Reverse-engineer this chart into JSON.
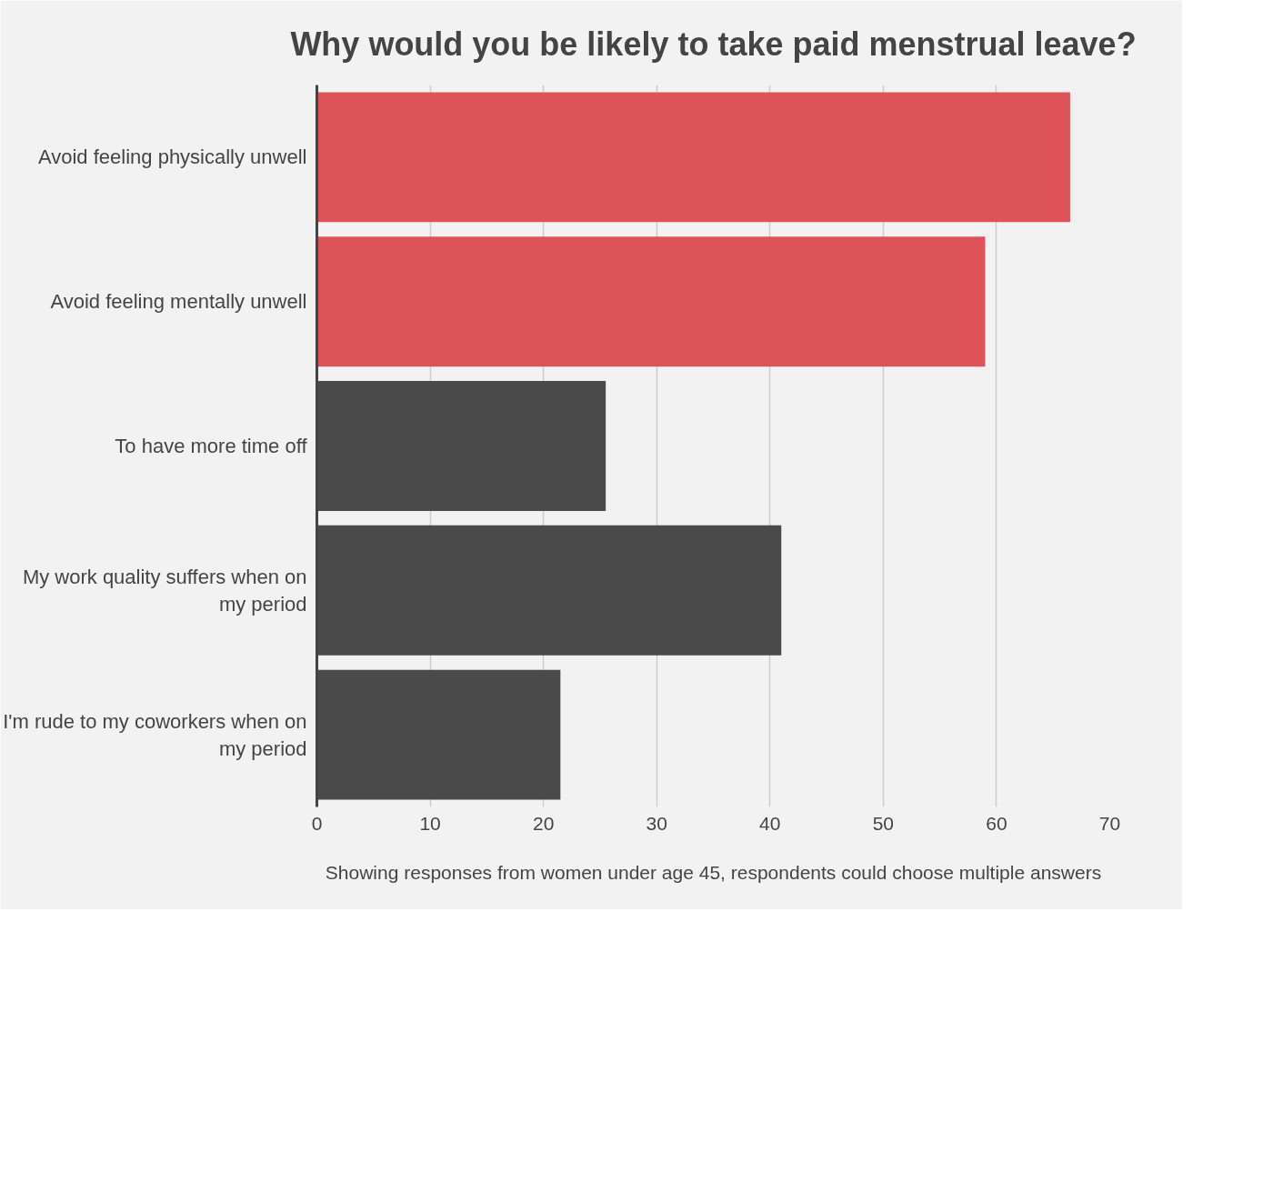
{
  "chart_data": {
    "type": "bar",
    "orientation": "horizontal",
    "title": "Why would you be likely to take paid menstrual leave?",
    "categories": [
      "Avoid feeling physically unwell",
      "Avoid feeling mentally unwell",
      "To have more time off",
      "My work quality suffers when on my period",
      "I'm rude to my coworkers when on my period"
    ],
    "values": [
      66.5,
      59,
      25.5,
      41,
      21.5
    ],
    "colors": [
      "#dd5357",
      "#dd5357",
      "#4a4a4a",
      "#4a4a4a",
      "#4a4a4a"
    ],
    "xlim": [
      0,
      70
    ],
    "xticks": [
      0,
      10,
      20,
      30,
      40,
      50,
      60,
      70
    ],
    "grid": "x",
    "annotations": [
      "Showing responses from women under age 45, respondents could choose multiple answers"
    ]
  }
}
